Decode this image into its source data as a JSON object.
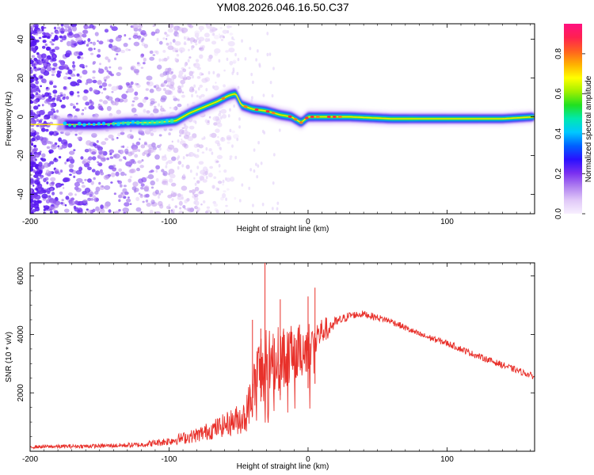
{
  "title": "YM08.2026.046.16.50.C37",
  "colors": {
    "snr_line": "#e8302a",
    "axis": "#000000",
    "colorbar_stops": [
      "#f8f0ff",
      "#e0c8f8",
      "#b080f0",
      "#7a2ff0",
      "#2a10ff",
      "#0060ff",
      "#00c8ff",
      "#00e8b0",
      "#20e020",
      "#a0f000",
      "#ffff00",
      "#ffb000",
      "#ff6020",
      "#ff2050",
      "#ff1080"
    ]
  },
  "chart_data": [
    {
      "type": "heatmap",
      "name": "spectrogram",
      "xlabel": "Height of straight line (km)",
      "ylabel": "Frequency (Hz)",
      "xlim": [
        -200,
        163
      ],
      "ylim": [
        -50,
        48
      ],
      "xticks": [
        -200,
        -100,
        0,
        100
      ],
      "xtick_labels": [
        "-200",
        "-100",
        "0",
        "100"
      ],
      "yticks": [
        -40,
        -20,
        0,
        20,
        40
      ],
      "ytick_labels": [
        "-40",
        "-20",
        "0",
        "20",
        "40"
      ],
      "ridge": {
        "description_points_x": [
          -175,
          -150,
          -130,
          -110,
          -95,
          -85,
          -75,
          -65,
          -57,
          -52,
          -48,
          -40,
          -30,
          -20,
          -12,
          -5,
          0,
          10,
          30,
          60,
          100,
          140,
          163
        ],
        "frequency_hz": [
          -4,
          -4,
          -3,
          -3,
          -2,
          2,
          5,
          8,
          11,
          12,
          6,
          4,
          3,
          1,
          0,
          -3,
          0,
          0,
          0,
          -1,
          -1,
          -1,
          0
        ]
      },
      "colorbar": {
        "label": "Normalized spectral amplitude",
        "range": [
          0.0,
          0.95
        ],
        "ticks": [
          0.0,
          0.2,
          0.4,
          0.6,
          0.8
        ],
        "tick_labels": [
          "0.0",
          "0.2",
          "0.4",
          "0.6",
          "0.8"
        ]
      }
    },
    {
      "type": "line",
      "name": "snr",
      "xlabel": "Height of straight line (km)",
      "ylabel": "SNR (10 * v/v)",
      "xlim": [
        -200,
        163
      ],
      "ylim": [
        0,
        6450
      ],
      "xticks": [
        -200,
        -100,
        0,
        100
      ],
      "xtick_labels": [
        "-200",
        "-100",
        "0",
        "100"
      ],
      "yticks": [
        2000,
        4000,
        6000
      ],
      "ytick_labels": [
        "2000",
        "4000",
        "6000"
      ],
      "envelope_x": [
        -200,
        -150,
        -120,
        -100,
        -80,
        -60,
        -45,
        -40,
        -35,
        -30,
        -20,
        -10,
        0,
        10,
        20,
        30,
        40,
        60,
        80,
        100,
        120,
        140,
        163
      ],
      "envelope_mean": [
        150,
        180,
        220,
        350,
        550,
        900,
        1200,
        2000,
        2800,
        3000,
        3200,
        3300,
        3600,
        4100,
        4400,
        4650,
        4700,
        4450,
        4000,
        3700,
        3300,
        2950,
        2550
      ],
      "envelope_noise": [
        60,
        70,
        90,
        150,
        250,
        400,
        600,
        900,
        1400,
        1200,
        1100,
        1000,
        900,
        500,
        200,
        130,
        120,
        110,
        110,
        110,
        110,
        110,
        110
      ],
      "spikes": [
        {
          "x": -31,
          "y": 6450
        },
        {
          "x": 5,
          "y": 5600
        },
        {
          "x": -20,
          "y": 5200
        },
        {
          "x": 0,
          "y": 5300
        },
        {
          "x": -40,
          "y": 4500
        },
        {
          "x": -34,
          "y": 4200
        }
      ]
    }
  ]
}
